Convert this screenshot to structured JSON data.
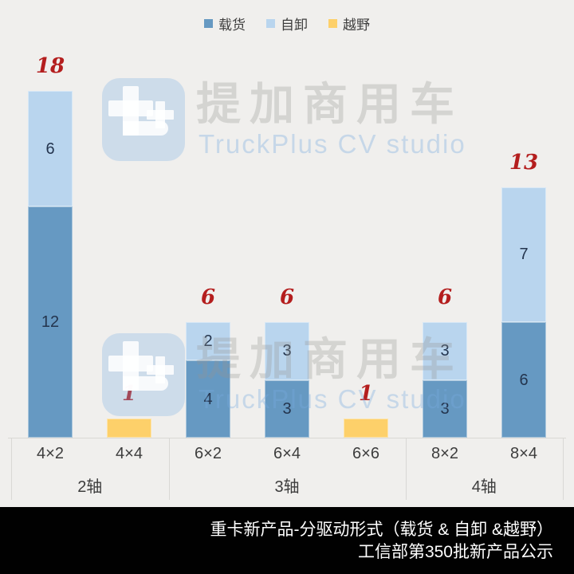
{
  "legend": {
    "items": [
      {
        "label": "载货",
        "color": "#6699c2"
      },
      {
        "label": "自卸",
        "color": "#b9d5ee"
      },
      {
        "label": "越野",
        "color": "#fdd06a"
      }
    ]
  },
  "watermark": {
    "brand": "提加商用车",
    "studio": "TruckPlus CV studio"
  },
  "chart_data": {
    "type": "bar",
    "stacked": true,
    "orientation": "vertical",
    "title": "重卡新产品-分驱动形式（载货 & 自卸 &越野）",
    "categories": [
      "4×2",
      "4×4",
      "6×2",
      "6×4",
      "6×6",
      "8×2",
      "8×4"
    ],
    "series": [
      {
        "name": "载货",
        "color": "#6699c2",
        "show_labels": true,
        "values": [
          12,
          0,
          4,
          3,
          0,
          3,
          6
        ]
      },
      {
        "name": "自卸",
        "color": "#b9d5ee",
        "show_labels": true,
        "values": [
          6,
          0,
          2,
          3,
          0,
          3,
          7
        ]
      },
      {
        "name": "越野",
        "color": "#fdd06a",
        "show_labels": false,
        "values": [
          0,
          1,
          0,
          0,
          1,
          0,
          0
        ]
      }
    ],
    "totals": [
      18,
      1,
      6,
      6,
      1,
      6,
      13
    ],
    "axis_groups": [
      {
        "label": "2轴",
        "categories": [
          "4×2",
          "4×4"
        ]
      },
      {
        "label": "3轴",
        "categories": [
          "6×2",
          "6×4",
          "6×6"
        ]
      },
      {
        "label": "4轴",
        "categories": [
          "8×2",
          "8×4"
        ]
      }
    ],
    "ylim": [
      0,
      18
    ],
    "gridlines": false,
    "legend_position": "top",
    "total_label_color": "#b41e1e",
    "value_label_color": "#24354e"
  },
  "footer": {
    "line1": "重卡新产品-分驱动形式（载货 & 自卸 &越野）",
    "line2": "工信部第350批新产品公示"
  }
}
